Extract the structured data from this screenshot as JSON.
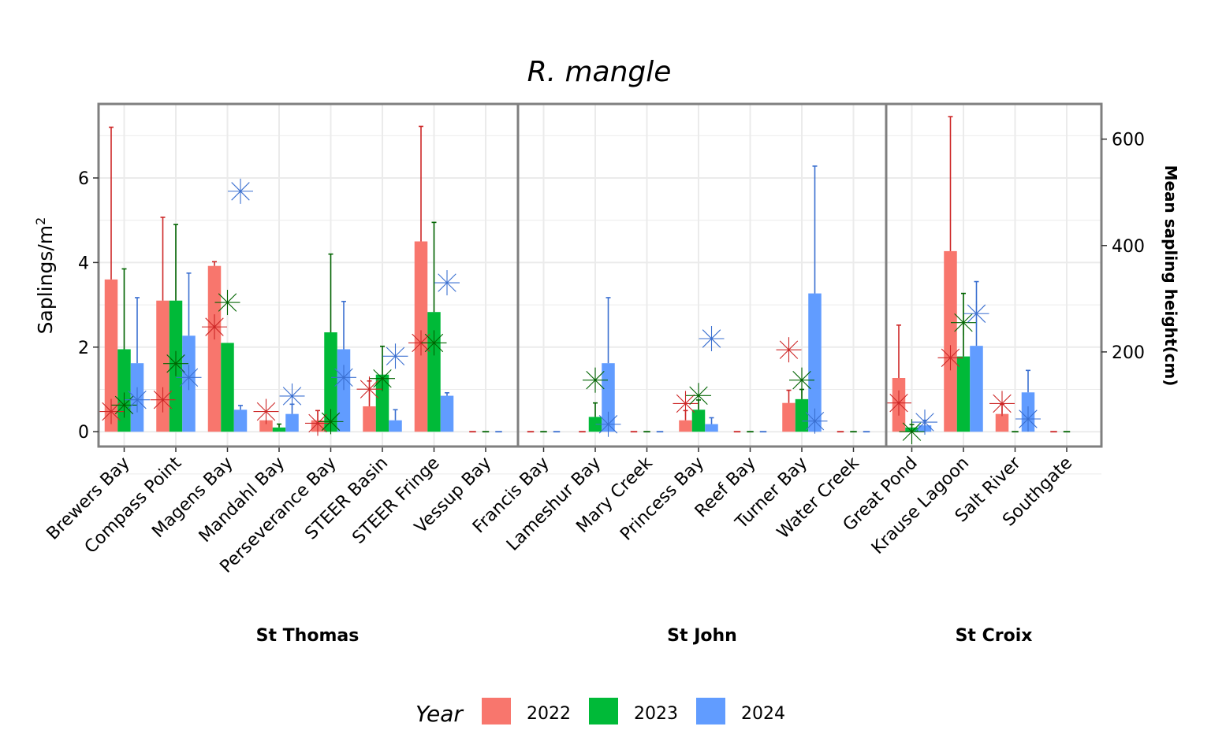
{
  "chart_data": {
    "type": "bar",
    "title": "R. mangle",
    "ylabel": "Saplings/m",
    "ylabel_sup": "2",
    "y2label": "Mean sapling height(cm)",
    "ylim": [
      -0.35,
      7.75
    ],
    "yticks": [
      0,
      2,
      4,
      6
    ],
    "y2ticks": [
      200,
      400,
      600
    ],
    "y2_mapping": {
      "y2_at_y0": 50,
      "y2_per_y": 79.5
    },
    "grid": true,
    "legend": {
      "title": "Year",
      "position": "bottom",
      "entries": [
        "2022",
        "2023",
        "2024"
      ]
    },
    "colors": {
      "2022": "#F8766D",
      "2023": "#00BA38",
      "2024": "#619CFF"
    },
    "errorbar_colors": {
      "2022": "#CD2626",
      "2023": "#006400",
      "2024": "#3A6FD0"
    },
    "panels": [
      {
        "name": "St Thomas",
        "sites": [
          {
            "name": "Brewers Bay",
            "density": [
              3.6,
              1.95,
              1.62
            ],
            "upper": [
              7.2,
              3.85,
              3.17
            ],
            "height": [
              88,
              100,
              110
            ]
          },
          {
            "name": "Compass Point",
            "density": [
              3.1,
              3.1,
              2.27
            ],
            "upper": [
              5.07,
              4.9,
              3.75
            ],
            "height": [
              110,
              178,
              152
            ]
          },
          {
            "name": "Magens Bay",
            "density": [
              3.92,
              2.1,
              0.52
            ],
            "upper": [
              4.02,
              2.1,
              0.62
            ],
            "height": [
              247,
              293,
              502
            ]
          },
          {
            "name": "Mandahl Bay",
            "density": [
              0.27,
              0.1,
              0.42
            ],
            "upper": [
              0.27,
              0.18,
              0.65
            ],
            "height": [
              88,
              null,
              117
            ]
          },
          {
            "name": "Perseverance Bay",
            "density": [
              0.27,
              2.35,
              1.95
            ],
            "upper": [
              0.5,
              4.2,
              3.08
            ],
            "height": [
              66,
              69,
              152
            ]
          },
          {
            "name": "STEER Basin",
            "density": [
              0.6,
              1.35,
              0.27
            ],
            "upper": [
              1.2,
              2.02,
              0.52
            ],
            "height": [
              130,
              150,
              192
            ]
          },
          {
            "name": "STEER Fringe",
            "density": [
              4.5,
              2.83,
              0.85
            ],
            "upper": [
              7.22,
              4.95,
              0.92
            ],
            "height": [
              217,
              217,
              330
            ]
          },
          {
            "name": "Vessup Bay",
            "density": [
              0,
              0,
              0
            ],
            "upper": [
              null,
              null,
              null
            ],
            "height": [
              null,
              null,
              null
            ]
          }
        ]
      },
      {
        "name": "St John",
        "sites": [
          {
            "name": "Francis Bay",
            "density": [
              0,
              0,
              0
            ],
            "upper": [
              null,
              null,
              null
            ],
            "height": [
              null,
              null,
              null
            ]
          },
          {
            "name": "Lameshur Bay",
            "density": [
              0,
              0.35,
              1.62
            ],
            "upper": [
              null,
              0.68,
              3.17
            ],
            "height": [
              null,
              147,
              64
            ]
          },
          {
            "name": "Mary Creek",
            "density": [
              0,
              0,
              0
            ],
            "upper": [
              null,
              null,
              null
            ],
            "height": [
              null,
              null,
              null
            ]
          },
          {
            "name": "Princess Bay",
            "density": [
              0.27,
              0.52,
              0.18
            ],
            "upper": [
              0.5,
              0.75,
              0.33
            ],
            "height": [
              103,
              118,
              225
            ]
          },
          {
            "name": "Reef Bay",
            "density": [
              0,
              0,
              0
            ],
            "upper": [
              null,
              null,
              null
            ],
            "height": [
              null,
              null,
              null
            ]
          },
          {
            "name": "Turner Bay",
            "density": [
              0.68,
              0.77,
              3.27
            ],
            "upper": [
              0.98,
              1.0,
              6.28
            ],
            "height": [
              204,
              147,
              70
            ]
          },
          {
            "name": "Water Creek",
            "density": [
              0,
              0,
              0
            ],
            "upper": [
              null,
              null,
              null
            ],
            "height": [
              null,
              null,
              null
            ]
          }
        ]
      },
      {
        "name": "St Croix",
        "sites": [
          {
            "name": "Great Pond",
            "density": [
              1.27,
              0.1,
              0.15
            ],
            "upper": [
              2.52,
              0.17,
              0.27
            ],
            "height": [
              104,
              50,
              68
            ]
          },
          {
            "name": "Krause Lagoon",
            "density": [
              4.27,
              1.78,
              2.03
            ],
            "upper": [
              7.45,
              3.27,
              3.55
            ],
            "height": [
              189,
              255,
              272
            ]
          },
          {
            "name": "Salt River",
            "density": [
              0.42,
              0,
              0.93
            ],
            "upper": [
              0.65,
              null,
              1.45
            ],
            "height": [
              103,
              null,
              74
            ]
          },
          {
            "name": "Southgate",
            "density": [
              0,
              0,
              null
            ],
            "upper": [
              null,
              null,
              null
            ],
            "height": [
              null,
              null,
              null
            ]
          }
        ]
      }
    ]
  }
}
